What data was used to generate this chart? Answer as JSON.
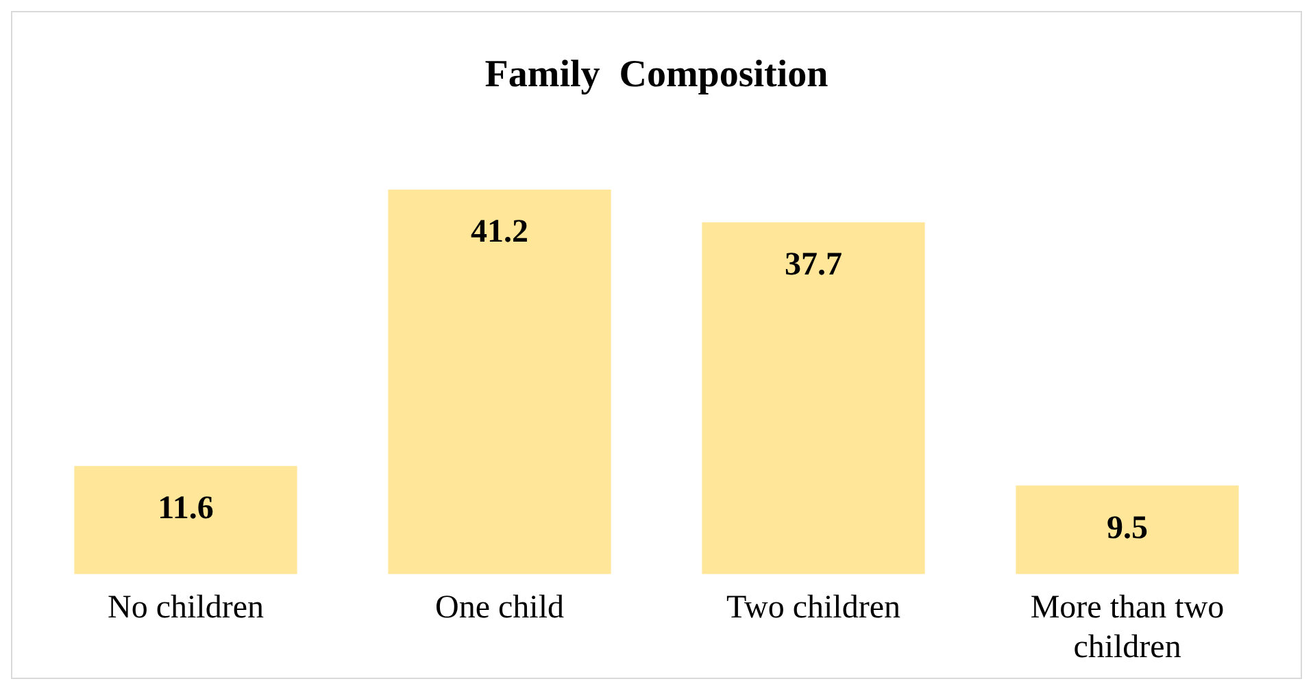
{
  "chart_data": {
    "type": "bar",
    "title": "Family  Composition",
    "categories": [
      "No children",
      "One child",
      "Two children",
      "More than two children"
    ],
    "values": [
      11.6,
      41.2,
      37.7,
      9.5
    ],
    "color": "#ffe699",
    "data_labels": true
  }
}
